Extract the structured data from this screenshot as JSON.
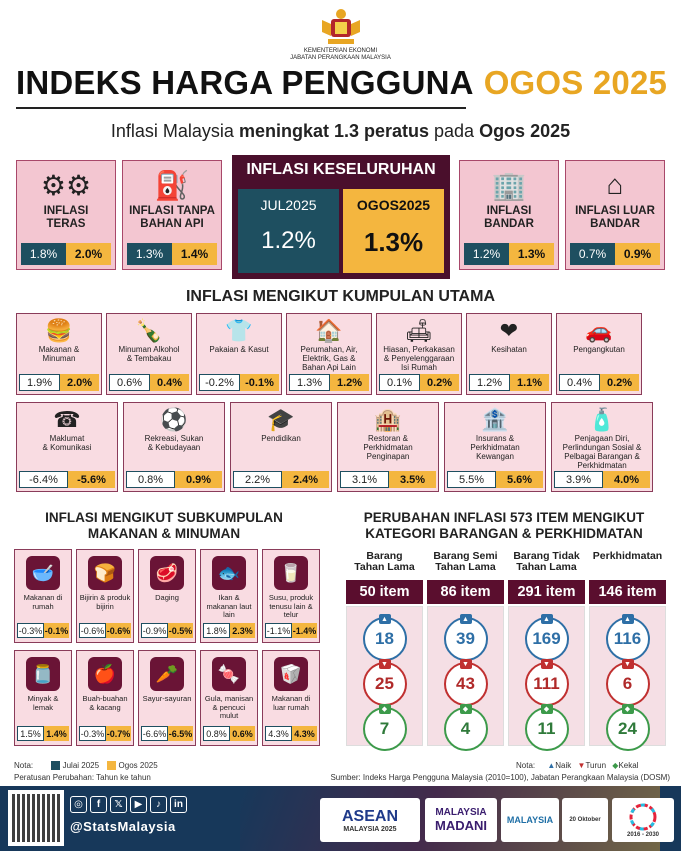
{
  "header": {
    "ministry_line1": "KEMENTERIAN EKONOMI",
    "ministry_line2": "JABATAN PERANGKAAN MALAYSIA",
    "title_main": "INDEKS HARGA PENGGUNA",
    "title_month": "OGOS 2025",
    "subtitle_pre": "Inflasi Malaysia ",
    "subtitle_bold": "meningkat 1.3 peratus",
    "subtitle_mid": " pada ",
    "subtitle_month": "Ogos 2025"
  },
  "overall": {
    "title": "INFLASI KESELURUHAN",
    "prev_label": "JUL2025",
    "curr_label": "OGOS2025",
    "prev_value": "1.2%",
    "curr_value": "1.3%"
  },
  "top_cards": [
    {
      "label_l1": "INFLASI",
      "label_l2": "TERAS",
      "prev": "1.8%",
      "curr": "2.0%",
      "icon": "gears-icon"
    },
    {
      "label_l1": "INFLASI TANPA",
      "label_l2": "BAHAN API",
      "prev": "1.3%",
      "curr": "1.4%",
      "icon": "fuel-pump-icon"
    },
    {
      "label_l1": "INFLASI",
      "label_l2": "BANDAR",
      "prev": "1.2%",
      "curr": "1.3%",
      "icon": "building-icon"
    },
    {
      "label_l1": "INFLASI LUAR",
      "label_l2": "BANDAR",
      "prev": "0.7%",
      "curr": "0.9%",
      "icon": "house-icon"
    }
  ],
  "groups_title": "INFLASI MENGIKUT KUMPULAN UTAMA",
  "groups_row1": [
    {
      "l1": "Makanan &",
      "l2": "Minuman",
      "l3": "",
      "l4": "",
      "prev": "1.9%",
      "curr": "2.0%",
      "icon": "food-icon"
    },
    {
      "l1": "Minuman Alkohol",
      "l2": "& Tembakau",
      "l3": "",
      "l4": "",
      "prev": "0.6%",
      "curr": "0.4%",
      "icon": "bottle-icon"
    },
    {
      "l1": "Pakaian & Kasut",
      "l2": "",
      "l3": "",
      "l4": "",
      "prev": "-0.2%",
      "curr": "-0.1%",
      "icon": "clothing-icon"
    },
    {
      "l1": "Perumahan, Air,",
      "l2": "Elektrik, Gas &",
      "l3": "Bahan Api Lain",
      "l4": "",
      "prev": "1.3%",
      "curr": "1.2%",
      "icon": "house-utilities-icon"
    },
    {
      "l1": "Hiasan, Perkakasan",
      "l2": "& Penyelenggaraan",
      "l3": "Isi Rumah",
      "l4": "",
      "prev": "0.1%",
      "curr": "0.2%",
      "icon": "furnishing-icon"
    },
    {
      "l1": "Kesihatan",
      "l2": "",
      "l3": "",
      "l4": "",
      "prev": "1.2%",
      "curr": "1.1%",
      "icon": "health-icon"
    },
    {
      "l1": "Pengangkutan",
      "l2": "",
      "l3": "",
      "l4": "",
      "prev": "0.4%",
      "curr": "0.2%",
      "icon": "transport-icon"
    }
  ],
  "groups_row2": [
    {
      "l1": "Maklumat",
      "l2": "& Komunikasi",
      "l3": "",
      "l4": "",
      "prev": "-6.4%",
      "curr": "-5.6%",
      "icon": "phone-icon"
    },
    {
      "l1": "Rekreasi, Sukan",
      "l2": "& Kebudayaan",
      "l3": "",
      "l4": "",
      "prev": "0.8%",
      "curr": "0.9%",
      "icon": "sports-icon"
    },
    {
      "l1": "Pendidikan",
      "l2": "",
      "l3": "",
      "l4": "",
      "prev": "2.2%",
      "curr": "2.4%",
      "icon": "education-icon"
    },
    {
      "l1": "Restoran &",
      "l2": "Perkhidmatan",
      "l3": "Penginapan",
      "l4": "",
      "prev": "3.1%",
      "curr": "3.5%",
      "icon": "restaurant-icon"
    },
    {
      "l1": "Insurans &",
      "l2": "Perkhidmatan",
      "l3": "Kewangan",
      "l4": "",
      "prev": "5.5%",
      "curr": "5.6%",
      "icon": "insurance-icon"
    },
    {
      "l1": "Penjagaan Diri,",
      "l2": "Perlindungan Sosial &",
      "l3": "Pelbagai Barangan &",
      "l4": "Perkhidmatan",
      "prev": "3.9%",
      "curr": "4.0%",
      "icon": "personal-care-icon"
    }
  ],
  "sub_title_l1": "INFLASI MENGIKUT SUBKUMPULAN",
  "sub_title_l2": "MAKANAN & MINUMAN",
  "sub_row1": [
    {
      "l1": "Makanan di",
      "l2": "rumah",
      "l3": "",
      "prev": "-0.3%",
      "curr": "-0.1%",
      "icon": "bowl-icon"
    },
    {
      "l1": "Bijirin & produk",
      "l2": "bijirin",
      "l3": "",
      "prev": "-0.6%",
      "curr": "-0.6%",
      "icon": "bread-icon"
    },
    {
      "l1": "Daging",
      "l2": "",
      "l3": "",
      "prev": "-0.9%",
      "curr": "-0.5%",
      "icon": "meat-icon"
    },
    {
      "l1": "Ikan &",
      "l2": "makanan laut",
      "l3": "lain",
      "prev": "1.8%",
      "curr": "2.3%",
      "icon": "fish-icon"
    },
    {
      "l1": "Susu, produk",
      "l2": "tenusu lain &",
      "l3": "telur",
      "prev": "-1.1%",
      "curr": "-1.4%",
      "icon": "milk-icon"
    }
  ],
  "sub_row2": [
    {
      "l1": "Minyak &",
      "l2": "lemak",
      "l3": "",
      "prev": "1.5%",
      "curr": "1.4%",
      "icon": "oil-icon"
    },
    {
      "l1": "Buah-buahan",
      "l2": "& kacang",
      "l3": "",
      "prev": "-0.3%",
      "curr": "-0.7%",
      "icon": "fruit-icon"
    },
    {
      "l1": "Sayur-sayuran",
      "l2": "",
      "l3": "",
      "prev": "-6.6%",
      "curr": "-6.5%",
      "icon": "vegetable-icon"
    },
    {
      "l1": "Gula, manisan",
      "l2": "& pencuci",
      "l3": "mulut",
      "prev": "0.8%",
      "curr": "0.6%",
      "icon": "sugar-icon"
    },
    {
      "l1": "Makanan di",
      "l2": "luar rumah",
      "l3": "",
      "prev": "4.3%",
      "curr": "4.3%",
      "icon": "takeaway-icon"
    }
  ],
  "change_title_l1": "PERUBAHAN INFLASI 573 ITEM MENGIKUT",
  "change_title_l2": "KATEGORI BARANGAN & PERKHIDMATAN",
  "change_cols": [
    {
      "h1": "Barang",
      "h2": "Tahan Lama",
      "items": "50 item",
      "naik": "18",
      "turun": "25",
      "kekal": "7"
    },
    {
      "h1": "Barang Semi",
      "h2": "Tahan Lama",
      "items": "86 item",
      "naik": "39",
      "turun": "43",
      "kekal": "4"
    },
    {
      "h1": "Barang Tidak",
      "h2": "Tahan Lama",
      "items": "291 item",
      "naik": "169",
      "turun": "111",
      "kekal": "11"
    },
    {
      "h1": "Perkhidmatan",
      "h2": "",
      "items": "146 item",
      "naik": "116",
      "turun": "6",
      "kekal": "24"
    }
  ],
  "notes": {
    "nota": "Nota:",
    "legend_prev": "Julai 2025",
    "legend_curr": "Ogos 2025",
    "rate": "Peratusan Perubahan: Tahun ke tahun",
    "nota2": "Nota:",
    "naik": "Naik",
    "turun": "Turun",
    "kekal": "Kekal",
    "source": "Sumber: Indeks Harga Pengguna Malaysia (2010=100), Jabatan Perangkaan Malaysia (DOSM)"
  },
  "footer": {
    "handle": "@StatsMalaysia",
    "social": [
      "◎",
      "f",
      "𝕏",
      "▶",
      "♪",
      "in"
    ],
    "logo1_l1": "ASEAN",
    "logo1_l2": "MALAYSIA 2025",
    "logo2_l1": "MALAYSIA",
    "logo2_l2": "MADANI",
    "logo3_l1": "MALAYSIA",
    "logo3_l2": "20 Oktober",
    "logo4": "2016 - 2030"
  },
  "colors": {
    "prev": "#1e4f60",
    "curr": "#f4b63f",
    "maroon": "#4a0f2c"
  }
}
